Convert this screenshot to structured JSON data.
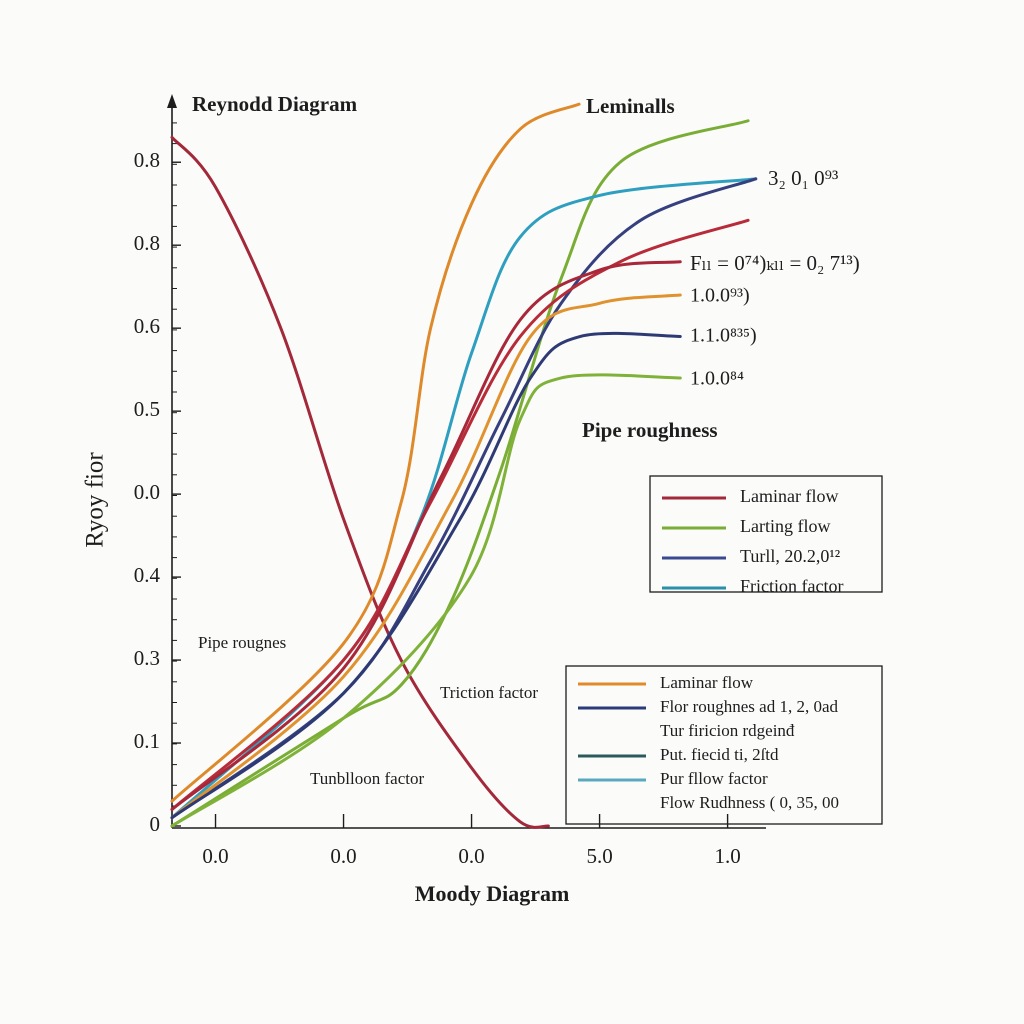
{
  "chart_data": {
    "type": "line",
    "title": "Reynodd Diagram",
    "xlabel": "Moody Diagram",
    "ylabel": "Ryoy fior",
    "xlim": [
      -0.34,
      4.3
    ],
    "ylim": [
      0,
      0.875
    ],
    "xticks": [
      {
        "value": 0,
        "label": "0.0"
      },
      {
        "value": 1,
        "label": "0.0"
      },
      {
        "value": 2,
        "label": "0.0"
      },
      {
        "value": 3,
        "label": "5.0"
      },
      {
        "value": 4,
        "label": "1.0"
      }
    ],
    "yticks": [
      0,
      0.1,
      {
        "value": 0.2,
        "label": "0.3"
      },
      {
        "value": 0.3,
        "label": "0.4"
      },
      {
        "value": 0.4,
        "label": "0.0"
      },
      0.5,
      0.6,
      {
        "value": 0.7,
        "label": "0.8"
      },
      0.8
    ],
    "series": [
      {
        "color": "#a3293a",
        "x": [
          -0.34,
          0,
          0.51,
          1.0,
          1.45,
          2.0,
          2.38,
          2.6
        ],
        "values": [
          0.83,
          0.77,
          0.6,
          0.37,
          0.2,
          0.07,
          0.005,
          0
        ]
      },
      {
        "color": "#de8a2b",
        "x": [
          -0.34,
          1.0,
          1.45,
          1.68,
          2.0,
          2.38,
          2.84
        ],
        "values": [
          0.03,
          0.22,
          0.39,
          0.6,
          0.75,
          0.84,
          0.87
        ]
      },
      {
        "color": "#7aad35",
        "x": [
          -0.34,
          1.0,
          1.45,
          1.84,
          2.23,
          2.7,
          3.16,
          4.16
        ],
        "values": [
          0,
          0.13,
          0.17,
          0.27,
          0.43,
          0.66,
          0.8,
          0.85
        ]
      },
      {
        "color": "#2f9fc0",
        "x": [
          -0.34,
          1.0,
          1.6,
          2.0,
          2.38,
          3.0,
          4.22
        ],
        "values": [
          0.01,
          0.2,
          0.37,
          0.57,
          0.71,
          0.76,
          0.78
        ]
      },
      {
        "color": "#36407e",
        "x": [
          -0.34,
          1.0,
          1.68,
          2.23,
          2.7,
          3.32,
          4.22
        ],
        "values": [
          0.01,
          0.16,
          0.32,
          0.49,
          0.63,
          0.73,
          0.78
        ]
      },
      {
        "color": "#b82c3a",
        "x": [
          -0.34,
          1.0,
          1.68,
          2.38,
          3.16,
          4.16
        ],
        "values": [
          0.02,
          0.2,
          0.39,
          0.59,
          0.68,
          0.73
        ]
      },
      {
        "color": "#a8283a",
        "x": [
          -0.34,
          1.0,
          1.76,
          2.38,
          3.0,
          3.63
        ],
        "values": [
          0.02,
          0.19,
          0.42,
          0.61,
          0.67,
          0.68
        ]
      },
      {
        "color": "#e0922f",
        "x": [
          -0.34,
          1.0,
          1.84,
          2.46,
          3.0,
          3.63
        ],
        "values": [
          0.01,
          0.18,
          0.39,
          0.59,
          0.63,
          0.64
        ]
      },
      {
        "color": "#2e3a74",
        "x": [
          -0.34,
          1.0,
          1.91,
          2.46,
          2.85,
          3.63
        ],
        "values": [
          0.01,
          0.16,
          0.37,
          0.54,
          0.59,
          0.59
        ]
      },
      {
        "color": "#80b23a",
        "x": [
          -0.34,
          1.0,
          1.99,
          2.38,
          2.7,
          3.63
        ],
        "values": [
          0,
          0.13,
          0.3,
          0.49,
          0.54,
          0.54
        ]
      }
    ],
    "annotations": [
      "Leminalls",
      "3₂ 0₁ 0⁹³",
      "Fₗₗ = 0⁷⁴)ₖₗₗ = 0₂ 7¹³)",
      "1.0.0⁹³)",
      "1.1.0⁸³⁵)",
      "1.0.0⁸⁴",
      "Pipe roughness",
      "Pipe rougnes",
      "Triction factor",
      "Tunblloon factor"
    ],
    "legends": [
      {
        "entries": [
          {
            "label": "Laminar flow",
            "color": "#a3293a"
          },
          {
            "label": "Larting flow",
            "color": "#7aad35"
          },
          {
            "label": "Turll, 20.2,0¹²",
            "color": "#3a4a90"
          },
          {
            "label": "Friction factor",
            "color": "#2a8fa8"
          }
        ]
      },
      {
        "entries": [
          {
            "label": "Laminar flow",
            "color": "#e08a2a"
          },
          {
            "label": "Flor roughnes ad 1, 2, 0ad",
            "color": "#2a3a7a"
          },
          {
            "label": "Tur firicion rdgeinđ"
          },
          {
            "label": "Put. fiecid ti, 2ſtd",
            "color": "#2a5a5a"
          },
          {
            "label": "Pur fllow factor",
            "color": "#5aa8c0"
          },
          {
            "label": "Flow Rudhness ( 0, 35, 00"
          }
        ]
      }
    ]
  }
}
